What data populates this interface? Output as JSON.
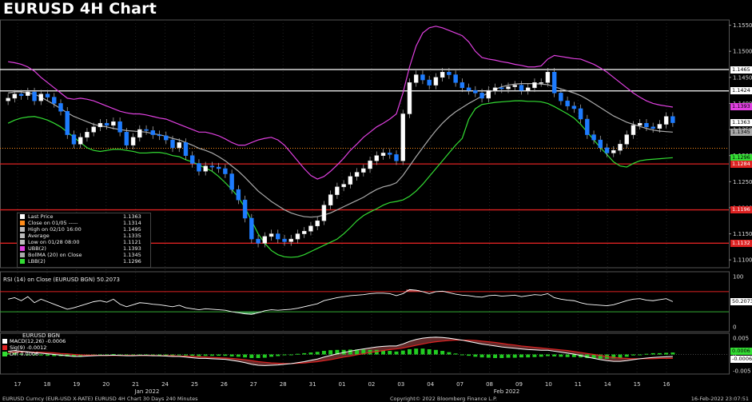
{
  "title": "EURUSD 4H Chart",
  "legend": [
    {
      "label": "Last Price",
      "value": "1.1363",
      "color": "#ffffff"
    },
    {
      "label": "Close on 01/05 -----",
      "value": "1.1314",
      "color": "#ff8c1a"
    },
    {
      "label": "High on 02/10 16:00",
      "value": "1.1495",
      "color": "#bbbbbb"
    },
    {
      "label": "Average",
      "value": "1.1335",
      "color": "#bbbbbb"
    },
    {
      "label": "Low on 01/28 08:00",
      "value": "1.1121",
      "color": "#bbbbbb"
    },
    {
      "label": "UBB(2)",
      "value": "1.1393",
      "color": "#e040e0"
    },
    {
      "label": "BollMA (20)  on Close",
      "value": "1.1345",
      "color": "#aaaaaa"
    },
    {
      "label": "LBB(2)",
      "value": "1.1296",
      "color": "#33dd33"
    }
  ],
  "price_tags": [
    {
      "text": "1.1465",
      "bg": "#ffffff",
      "fg": "#000000",
      "y": 1.1465
    },
    {
      "text": "1.1424",
      "bg": "#ffffff",
      "fg": "#000000",
      "y": 1.1424
    },
    {
      "text": "1.1393",
      "bg": "#e040e0",
      "fg": "#000000",
      "y": 1.1393
    },
    {
      "text": "1.1363",
      "bg": "#ffffff",
      "fg": "#000000",
      "y": 1.1363
    },
    {
      "text": "1.1345",
      "bg": "#aaaaaa",
      "fg": "#000000",
      "y": 1.1345
    },
    {
      "text": "1.1296",
      "bg": "#33dd33",
      "fg": "#000000",
      "y": 1.1296
    },
    {
      "text": "1.1284",
      "bg": "#dd2222",
      "fg": "#ffffff",
      "y": 1.1284
    },
    {
      "text": "1.1196",
      "bg": "#dd2222",
      "fg": "#ffffff",
      "y": 1.1196
    },
    {
      "text": "1.1132",
      "bg": "#dd2222",
      "fg": "#ffffff",
      "y": 1.1132
    }
  ],
  "rsi_label": "RSI (14)  on Close (EURUSD BGN) 50.2073",
  "rsi_tag": "50.2073",
  "macd_title": "EURUSD BGN",
  "macd_legend": [
    {
      "label": "MACD(12,26) -0.0006",
      "color": "#ffffff"
    },
    {
      "label": "Sig(9)         -0.0012",
      "color": "#dd2222"
    },
    {
      "label": "Diff            0.0006",
      "color": "#33dd33"
    }
  ],
  "macd_tags": [
    {
      "text": "0.0006",
      "bg": "#33dd33",
      "fg": "#000000"
    },
    {
      "text": "-0.0006",
      "bg": "#ffffff",
      "fg": "#000000"
    }
  ],
  "footer_left": "EURUSD Curncy (EUR-USD X-RATE) EURUSD 4H Chart 30 Days 240 Minutes",
  "footer_center": "Copyright© 2022 Bloomberg Finance L.P.",
  "footer_right": "16-Feb-2022 23:07:51",
  "chart_data": {
    "type": "line",
    "title": "EURUSD 4H Chart",
    "x_ticks": [
      "17",
      "18",
      "19",
      "20",
      "21",
      "24",
      "25",
      "26",
      "27",
      "28",
      "31",
      "01",
      "02",
      "03",
      "04",
      "07",
      "08",
      "09",
      "10",
      "11",
      "14",
      "15",
      "16"
    ],
    "x_group_labels": [
      "Jan 2022",
      "Feb 2022"
    ],
    "y_ticks": [
      "1.1550",
      "1.1500",
      "1.1450",
      "1.1400",
      "1.1350",
      "1.1300",
      "1.1250",
      "1.1200",
      "1.1150",
      "1.1100"
    ],
    "ylim": [
      1.1085,
      1.156
    ],
    "horizontal_lines": [
      {
        "value": 1.1465,
        "color": "#ffffff"
      },
      {
        "value": 1.1424,
        "color": "#ffffff"
      },
      {
        "value": 1.1314,
        "color": "#ff8c1a"
      },
      {
        "value": 1.1284,
        "color": "#dd2222"
      },
      {
        "value": 1.1196,
        "color": "#dd2222"
      },
      {
        "value": 1.1132,
        "color": "#dd2222"
      }
    ],
    "closes": [
      1.141,
      1.1418,
      1.1415,
      1.1422,
      1.1405,
      1.1418,
      1.1412,
      1.14,
      1.1385,
      1.134,
      1.1322,
      1.1335,
      1.1345,
      1.1355,
      1.1362,
      1.1358,
      1.1365,
      1.1345,
      1.132,
      1.1335,
      1.135,
      1.1348,
      1.134,
      1.1338,
      1.133,
      1.1315,
      1.1325,
      1.13,
      1.1285,
      1.127,
      1.128,
      1.1278,
      1.1275,
      1.1265,
      1.1235,
      1.1215,
      1.118,
      1.114,
      1.1132,
      1.1145,
      1.115,
      1.114,
      1.1135,
      1.114,
      1.115,
      1.1155,
      1.1165,
      1.1175,
      1.1205,
      1.1225,
      1.124,
      1.1245,
      1.126,
      1.1268,
      1.1275,
      1.129,
      1.13,
      1.1305,
      1.1302,
      1.129,
      1.138,
      1.144,
      1.1455,
      1.1445,
      1.1435,
      1.145,
      1.146,
      1.1455,
      1.144,
      1.143,
      1.1425,
      1.142,
      1.141,
      1.1425,
      1.143,
      1.1428,
      1.1432,
      1.1435,
      1.1425,
      1.143,
      1.144,
      1.144,
      1.146,
      1.142,
      1.1405,
      1.1395,
      1.139,
      1.137,
      1.134,
      1.133,
      1.1315,
      1.1305,
      1.131,
      1.1322,
      1.134,
      1.1358,
      1.1362,
      1.1355,
      1.1352,
      1.136,
      1.1375,
      1.1363
    ],
    "ubb": [
      1.148,
      1.1478,
      1.1475,
      1.147,
      1.1462,
      1.145,
      1.144,
      1.143,
      1.142,
      1.141,
      1.1408,
      1.141,
      1.1408,
      1.1405,
      1.14,
      1.1395,
      1.139,
      1.1385,
      1.1382,
      1.138,
      1.138,
      1.1378,
      1.1375,
      1.1372,
      1.137,
      1.1365,
      1.136,
      1.1355,
      1.135,
      1.1345,
      1.1345,
      1.1342,
      1.1338,
      1.1332,
      1.1325,
      1.132,
      1.132,
      1.1325,
      1.133,
      1.1333,
      1.1335,
      1.133,
      1.132,
      1.1305,
      1.129,
      1.1275,
      1.1262,
      1.1255,
      1.126,
      1.127,
      1.1282,
      1.1295,
      1.131,
      1.1322,
      1.1335,
      1.1345,
      1.1355,
      1.1362,
      1.137,
      1.138,
      1.142,
      1.147,
      1.151,
      1.1535,
      1.1545,
      1.1548,
      1.1545,
      1.154,
      1.1535,
      1.153,
      1.1518,
      1.15,
      1.1488,
      1.1485,
      1.1483,
      1.148,
      1.1478,
      1.1475,
      1.1473,
      1.147,
      1.147,
      1.1472,
      1.1485,
      1.1492,
      1.149,
      1.1488,
      1.1486,
      1.1485,
      1.148,
      1.1475,
      1.1468,
      1.146,
      1.145,
      1.144,
      1.143,
      1.142,
      1.1412,
      1.1405,
      1.14,
      1.1397,
      1.1395,
      1.1393
    ],
    "ma": [
      1.142,
      1.1422,
      1.1422,
      1.142,
      1.1418,
      1.1412,
      1.1405,
      1.1398,
      1.139,
      1.1382,
      1.1375,
      1.137,
      1.1365,
      1.136,
      1.1357,
      1.1355,
      1.1352,
      1.135,
      1.1348,
      1.1347,
      1.1346,
      1.1345,
      1.1342,
      1.134,
      1.1337,
      1.1333,
      1.133,
      1.1325,
      1.132,
      1.1314,
      1.131,
      1.1305,
      1.1298,
      1.129,
      1.128,
      1.127,
      1.1258,
      1.1245,
      1.1232,
      1.1222,
      1.1212,
      1.1204,
      1.1196,
      1.119,
      1.1186,
      1.1183,
      1.1182,
      1.1183,
      1.1186,
      1.119,
      1.1196,
      1.1202,
      1.1208,
      1.1214,
      1.122,
      1.1228,
      1.1235,
      1.124,
      1.1243,
      1.1248,
      1.1262,
      1.128,
      1.1298,
      1.1315,
      1.1332,
      1.1348,
      1.1362,
      1.1374,
      1.1384,
      1.1392,
      1.14,
      1.1407,
      1.1414,
      1.142,
      1.1427,
      1.1432,
      1.1435,
      1.1437,
      1.1438,
      1.1438,
      1.1438,
      1.1437,
      1.1436,
      1.1432,
      1.1428,
      1.1424,
      1.142,
      1.1415,
      1.1408,
      1.14,
      1.1392,
      1.1384,
      1.1376,
      1.137,
      1.1364,
      1.136,
      1.1356,
      1.1352,
      1.1349,
      1.1347,
      1.1346,
      1.1345
    ],
    "lbb": [
      1.1362,
      1.1368,
      1.1372,
      1.1374,
      1.1375,
      1.1372,
      1.1368,
      1.1362,
      1.1355,
      1.1345,
      1.1335,
      1.1325,
      1.1315,
      1.131,
      1.1308,
      1.131,
      1.1312,
      1.1312,
      1.131,
      1.1308,
      1.1305,
      1.1305,
      1.1306,
      1.1306,
      1.1304,
      1.13,
      1.1298,
      1.1292,
      1.1288,
      1.1282,
      1.1276,
      1.127,
      1.126,
      1.1248,
      1.1235,
      1.122,
      1.12,
      1.1175,
      1.115,
      1.1132,
      1.1118,
      1.111,
      1.1106,
      1.1105,
      1.1106,
      1.111,
      1.1116,
      1.1122,
      1.1128,
      1.1134,
      1.114,
      1.115,
      1.1162,
      1.1175,
      1.1185,
      1.1192,
      1.1198,
      1.1205,
      1.121,
      1.1212,
      1.1215,
      1.1222,
      1.1232,
      1.1245,
      1.126,
      1.1275,
      1.129,
      1.1305,
      1.132,
      1.1333,
      1.137,
      1.139,
      1.1398,
      1.14,
      1.1402,
      1.1403,
      1.1404,
      1.1405,
      1.1405,
      1.1404,
      1.1404,
      1.1403,
      1.14,
      1.1394,
      1.1387,
      1.138,
      1.1372,
      1.136,
      1.1345,
      1.133,
      1.1315,
      1.1302,
      1.1288,
      1.128,
      1.1278,
      1.1285,
      1.129,
      1.1292,
      1.1293,
      1.1294,
      1.1295,
      1.1296
    ],
    "rsi": [
      55,
      58,
      52,
      60,
      48,
      55,
      50,
      45,
      40,
      35,
      38,
      42,
      46,
      50,
      52,
      49,
      55,
      45,
      40,
      44,
      48,
      47,
      45,
      44,
      42,
      40,
      43,
      38,
      36,
      34,
      36,
      35,
      34,
      33,
      30,
      28,
      26,
      25,
      28,
      32,
      34,
      33,
      34,
      35,
      37,
      40,
      43,
      46,
      52,
      55,
      58,
      60,
      62,
      63,
      64,
      66,
      67,
      67,
      66,
      62,
      66,
      74,
      73,
      70,
      66,
      70,
      71,
      68,
      65,
      63,
      62,
      60,
      59,
      62,
      63,
      61,
      62,
      63,
      60,
      62,
      64,
      63,
      66,
      58,
      55,
      53,
      52,
      48,
      45,
      44,
      43,
      42,
      44,
      48,
      52,
      55,
      56,
      53,
      52,
      54,
      56,
      50.2073
    ],
    "rsi_ylim": [
      0,
      100
    ],
    "rsi_levels": [
      70,
      30
    ],
    "macd": [
      0.001,
      0.0012,
      0.001,
      0.0008,
      0.0005,
      0.0004,
      0.0002,
      0.0,
      -0.0002,
      -0.0004,
      -0.0006,
      -0.0006,
      -0.0005,
      -0.0004,
      -0.0003,
      -0.0003,
      -0.0002,
      -0.0003,
      -0.0004,
      -0.0004,
      -0.0003,
      -0.0003,
      -0.0004,
      -0.0004,
      -0.0005,
      -0.0006,
      -0.0006,
      -0.0008,
      -0.001,
      -0.0012,
      -0.0012,
      -0.0013,
      -0.0014,
      -0.0015,
      -0.0018,
      -0.0021,
      -0.0025,
      -0.003,
      -0.0033,
      -0.0034,
      -0.0033,
      -0.0032,
      -0.003,
      -0.0028,
      -0.0025,
      -0.0022,
      -0.0018,
      -0.0014,
      -0.0008,
      -0.0003,
      0.0002,
      0.0006,
      0.001,
      0.0014,
      0.0017,
      0.002,
      0.0023,
      0.0025,
      0.0026,
      0.0026,
      0.0032,
      0.004,
      0.0046,
      0.005,
      0.0052,
      0.0053,
      0.0052,
      0.005,
      0.0047,
      0.0044,
      0.004,
      0.0036,
      0.0032,
      0.0029,
      0.0026,
      0.0023,
      0.0021,
      0.0019,
      0.0017,
      0.0015,
      0.0014,
      0.0013,
      0.0013,
      0.001,
      0.0007,
      0.0004,
      0.0001,
      -0.0003,
      -0.0008,
      -0.0012,
      -0.0016,
      -0.0019,
      -0.0021,
      -0.0021,
      -0.0019,
      -0.0016,
      -0.0013,
      -0.0011,
      -0.0009,
      -0.0008,
      -0.0007,
      -0.0006
    ],
    "signal": [
      0.0006,
      0.0007,
      0.0008,
      0.0008,
      0.0007,
      0.0007,
      0.0006,
      0.0005,
      0.0003,
      0.0002,
      0.0,
      -0.0001,
      -0.0002,
      -0.0002,
      -0.0003,
      -0.0003,
      -0.0003,
      -0.0003,
      -0.0003,
      -0.0003,
      -0.0003,
      -0.0003,
      -0.0003,
      -0.0004,
      -0.0004,
      -0.0004,
      -0.0005,
      -0.0005,
      -0.0006,
      -0.0007,
      -0.0008,
      -0.0009,
      -0.001,
      -0.0011,
      -0.0012,
      -0.0014,
      -0.0016,
      -0.0019,
      -0.0022,
      -0.0024,
      -0.0026,
      -0.0027,
      -0.0028,
      -0.0028,
      -0.0027,
      -0.0026,
      -0.0024,
      -0.0022,
      -0.0019,
      -0.0016,
      -0.0012,
      -0.0008,
      -0.0005,
      -0.0001,
      0.0002,
      0.0006,
      0.0009,
      0.0012,
      0.0015,
      0.0017,
      0.002,
      0.0024,
      0.0028,
      0.0032,
      0.0036,
      0.0039,
      0.0041,
      0.0043,
      0.0044,
      0.0044,
      0.0044,
      0.0043,
      0.0041,
      0.0039,
      0.0037,
      0.0034,
      0.0031,
      0.0029,
      0.0026,
      0.0024,
      0.0022,
      0.002,
      0.0018,
      0.0016,
      0.0014,
      0.0012,
      0.0009,
      0.0006,
      0.0003,
      0.0,
      -0.0003,
      -0.0006,
      -0.0009,
      -0.0011,
      -0.0012,
      -0.0013,
      -0.0013,
      -0.0013,
      -0.0013,
      -0.0012,
      -0.0012,
      -0.0012
    ],
    "macd_ylim": [
      -0.006,
      0.0065
    ],
    "macd_y_ticks": [
      "0.005",
      "0",
      "-0.005"
    ]
  }
}
